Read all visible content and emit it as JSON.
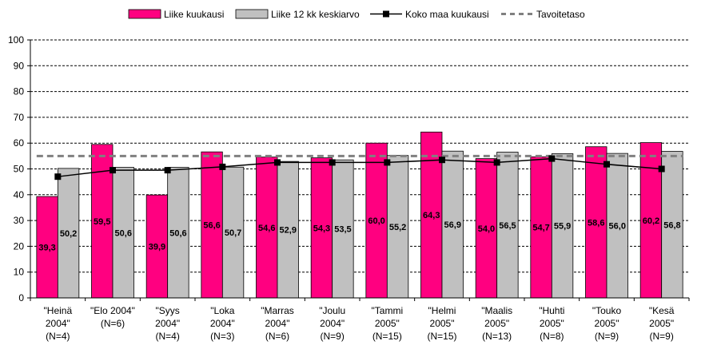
{
  "chart_data": {
    "type": "bar",
    "categories": [
      [
        "\"Heinä",
        "2004\"",
        "(N=4)"
      ],
      [
        "\"Elo 2004\"",
        "(N=6)"
      ],
      [
        "\"Syys",
        "2004\"",
        "(N=4)"
      ],
      [
        "\"Loka",
        "2004\"",
        "(N=3)"
      ],
      [
        "\"Marras",
        "2004\"",
        "(N=6)"
      ],
      [
        "\"Joulu",
        "2004\"",
        "(N=9)"
      ],
      [
        "\"Tammi",
        "2005\"",
        "(N=15)"
      ],
      [
        "\"Helmi",
        "2005\"",
        "(N=15)"
      ],
      [
        "\"Maalis",
        "2005\"",
        "(N=13)"
      ],
      [
        "\"Huhti",
        "2005\"",
        "(N=8)"
      ],
      [
        "\"Touko",
        "2005\"",
        "(N=9)"
      ],
      [
        "\"Kesä",
        "2005\"",
        "(N=9)"
      ]
    ],
    "series": [
      {
        "name": "Liike kuukausi",
        "kind": "bar",
        "color": "#ff0080",
        "values": [
          39.3,
          59.5,
          39.9,
          56.6,
          54.6,
          54.3,
          60.0,
          64.3,
          54.0,
          54.7,
          58.6,
          60.2
        ],
        "labels": [
          "39,3",
          "59,5",
          "39,9",
          "56,6",
          "54,6",
          "54,3",
          "60,0",
          "64,3",
          "54,0",
          "54,7",
          "58,6",
          "60,2"
        ]
      },
      {
        "name": "Liike 12 kk keskiarvo",
        "kind": "bar",
        "color": "#c0c0c0",
        "values": [
          50.2,
          50.6,
          50.6,
          50.7,
          52.9,
          53.5,
          55.2,
          56.9,
          56.5,
          55.9,
          56.0,
          56.8
        ],
        "labels": [
          "50,2",
          "50,6",
          "50,6",
          "50,7",
          "52,9",
          "53,5",
          "55,2",
          "56,9",
          "56,5",
          "55,9",
          "56,0",
          "56,8"
        ]
      },
      {
        "name": "Koko maa kuukausi",
        "kind": "line",
        "color": "#000000",
        "values": [
          47.0,
          49.5,
          49.5,
          50.8,
          52.5,
          52.5,
          52.5,
          53.5,
          52.5,
          54.0,
          51.8,
          50.0
        ]
      },
      {
        "name": "Tavoitetaso",
        "kind": "dashed-line",
        "color": "#808080",
        "values": [
          55,
          55,
          55,
          55,
          55,
          55,
          55,
          55,
          55,
          55,
          55,
          55
        ]
      }
    ],
    "yticks": [
      "0",
      "10",
      "20",
      "30",
      "40",
      "50",
      "60",
      "70",
      "80",
      "90",
      "100"
    ],
    "ylim": [
      0,
      100
    ],
    "grid": "horizontal dashed",
    "legend_position": "top"
  }
}
